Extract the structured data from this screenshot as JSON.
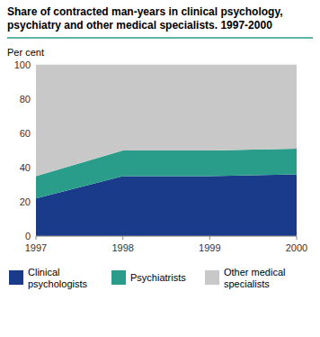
{
  "chart_data": {
    "type": "area",
    "stacked": true,
    "title": "Share of contracted man-years in clinical psychology,\npsychiatry and other medical specialists. 1997-2000",
    "y_label": "Per cent",
    "x": [
      1997,
      1998,
      1999,
      2000
    ],
    "xlim": [
      1997,
      2000
    ],
    "xticks": [
      1997,
      1998,
      1999,
      2000
    ],
    "ylim": [
      0,
      100
    ],
    "yticks": [
      0,
      20,
      40,
      60,
      80,
      100
    ],
    "grid": true,
    "legend": "bottom",
    "series": [
      {
        "name": "Clinical\npsychologists",
        "color": "#1a3a8a",
        "values": [
          22,
          35,
          35,
          36
        ]
      },
      {
        "name": "Psychiatrists",
        "color": "#2a9d8a",
        "values": [
          13,
          15,
          15,
          15
        ]
      },
      {
        "name": "Other medical\nspecialists",
        "color": "#c8c8c8",
        "values": [
          65,
          50,
          50,
          49
        ]
      }
    ]
  }
}
